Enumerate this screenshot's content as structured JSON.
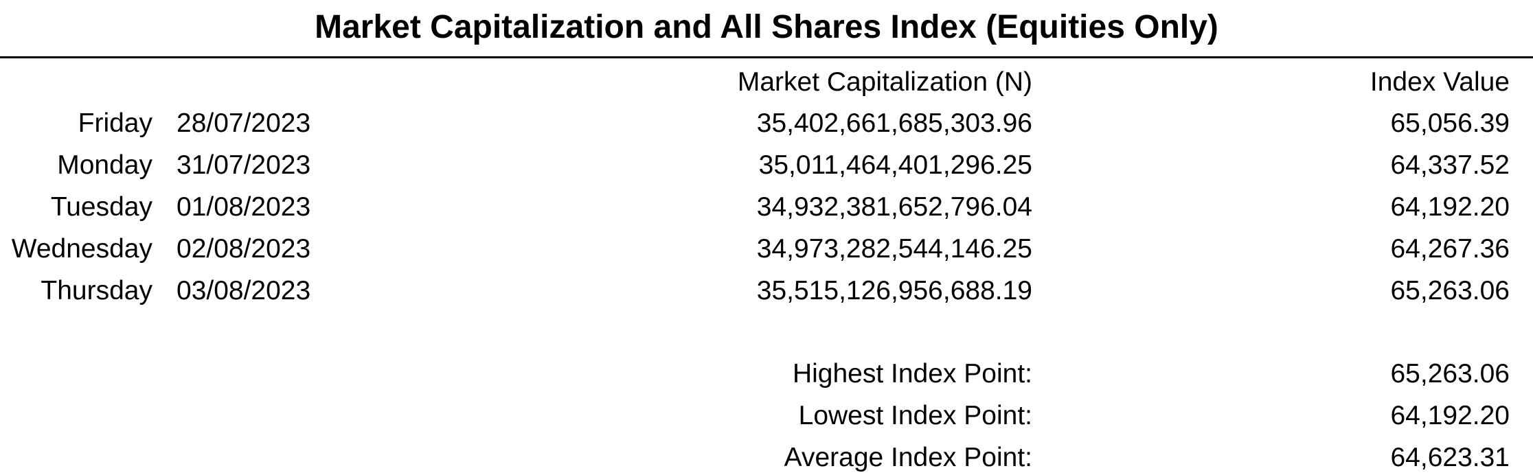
{
  "title": "Market Capitalization and All Shares Index (Equities Only)",
  "columns": {
    "market_cap": "Market Capitalization (N)",
    "index_value": "Index Value"
  },
  "rows": [
    {
      "day": "Friday",
      "date": "28/07/2023",
      "market_cap": "35,402,661,685,303.96",
      "index_value": "65,056.39"
    },
    {
      "day": "Monday",
      "date": "31/07/2023",
      "market_cap": "35,011,464,401,296.25",
      "index_value": "64,337.52"
    },
    {
      "day": "Tuesday",
      "date": "01/08/2023",
      "market_cap": "34,932,381,652,796.04",
      "index_value": "64,192.20"
    },
    {
      "day": "Wednesday",
      "date": "02/08/2023",
      "market_cap": "34,973,282,544,146.25",
      "index_value": "64,267.36"
    },
    {
      "day": "Thursday",
      "date": "03/08/2023",
      "market_cap": "35,515,126,956,688.19",
      "index_value": "65,263.06"
    }
  ],
  "summary": [
    {
      "label": "Highest Index Point:",
      "value": "65,263.06"
    },
    {
      "label": "Lowest Index Point:",
      "value": "64,192.20"
    },
    {
      "label": "Average Index Point:",
      "value": "64,623.31"
    }
  ]
}
